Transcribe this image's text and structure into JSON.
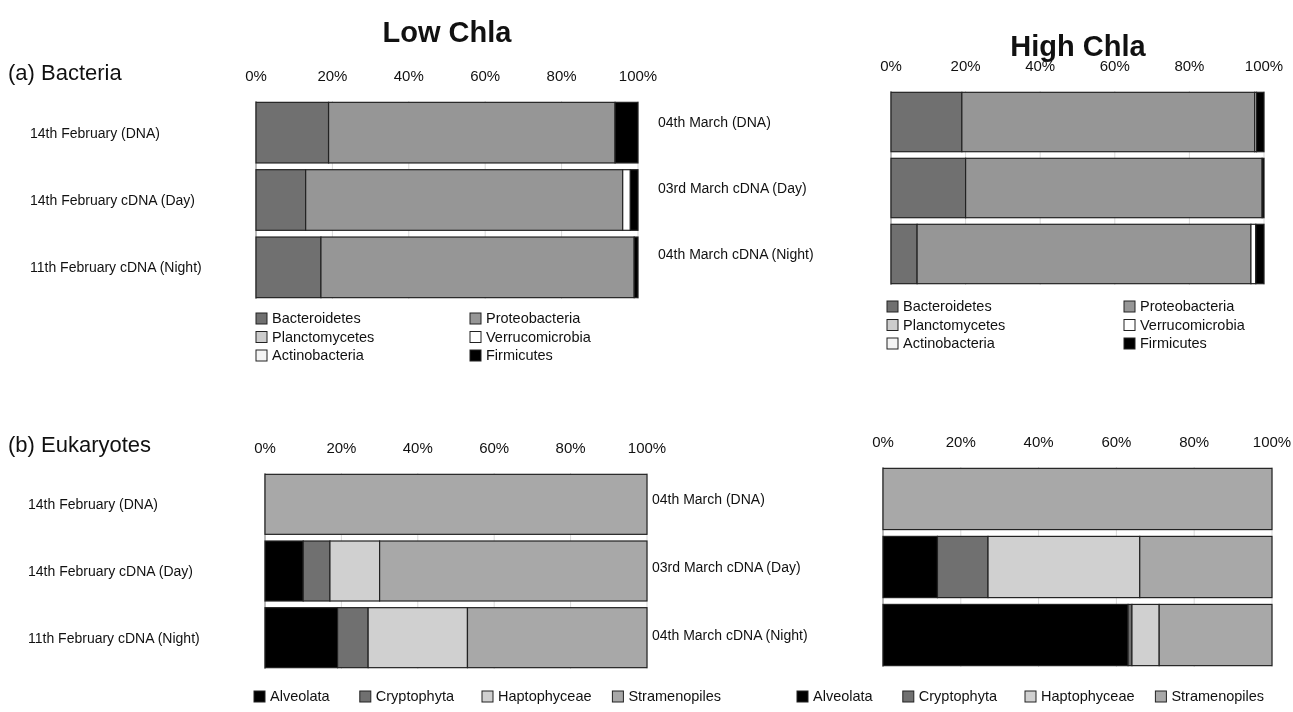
{
  "chart_data": [
    {
      "type": "bar",
      "orientation": "horizontal",
      "stacked": true,
      "title": "Low Chla",
      "annotations": [
        "(a) Bacteria"
      ],
      "categories": [
        "14th February (DNA)",
        "14th February cDNA (Day)",
        "11th February cDNA (Night)"
      ],
      "xlim": [
        0,
        100
      ],
      "xticks": [
        {
          "value": 0,
          "label": "0%"
        },
        {
          "value": 20,
          "label": "20%"
        },
        {
          "value": 40,
          "label": "40%"
        },
        {
          "value": 60,
          "label": "60%"
        },
        {
          "value": 80,
          "label": "80%"
        },
        {
          "value": 100,
          "label": "100%"
        }
      ],
      "grid": "x",
      "legend": "bottom",
      "series": [
        {
          "name": "Bacteroidetes",
          "color": "#707070",
          "values": [
            19,
            13,
            17
          ]
        },
        {
          "name": "Proteobacteria",
          "color": "#969696",
          "values": [
            75,
            83,
            82
          ]
        },
        {
          "name": "Planctomycetes",
          "color": "#cccccc",
          "values": [
            0,
            0,
            0
          ]
        },
        {
          "name": "Verrucomicrobia",
          "color": "#ffffff",
          "values": [
            0,
            2,
            0
          ]
        },
        {
          "name": "Actinobacteria",
          "color": "#f4f4f4",
          "values": [
            0,
            0,
            0
          ]
        },
        {
          "name": "Firmicutes",
          "color": "#000000",
          "values": [
            6,
            2,
            1
          ]
        }
      ]
    },
    {
      "type": "bar",
      "orientation": "horizontal",
      "stacked": true,
      "title": "High Chla",
      "categories": [
        "04th March (DNA)",
        "03rd March cDNA (Day)",
        "04th March cDNA (Night)"
      ],
      "xlim": [
        0,
        100
      ],
      "xticks": [
        {
          "value": 0,
          "label": "0%"
        },
        {
          "value": 20,
          "label": "20%"
        },
        {
          "value": 40,
          "label": "40%"
        },
        {
          "value": 60,
          "label": "60%"
        },
        {
          "value": 80,
          "label": "80%"
        },
        {
          "value": 100,
          "label": "100%"
        }
      ],
      "grid": "x",
      "legend": "bottom",
      "series": [
        {
          "name": "Bacteroidetes",
          "color": "#707070",
          "values": [
            19,
            20,
            7
          ]
        },
        {
          "name": "Proteobacteria",
          "color": "#969696",
          "values": [
            78.5,
            79.5,
            89.5
          ]
        },
        {
          "name": "Planctomycetes",
          "color": "#cccccc",
          "values": [
            0.5,
            0,
            0
          ]
        },
        {
          "name": "Verrucomicrobia",
          "color": "#ffffff",
          "values": [
            0,
            0,
            1.3
          ]
        },
        {
          "name": "Actinobacteria",
          "color": "#f4f4f4",
          "values": [
            0,
            0,
            0
          ]
        },
        {
          "name": "Firmicutes",
          "color": "#000000",
          "values": [
            2,
            0.5,
            2.2
          ]
        }
      ]
    },
    {
      "type": "bar",
      "orientation": "horizontal",
      "stacked": true,
      "annotations": [
        "(b) Eukaryotes"
      ],
      "categories": [
        "14th February (DNA)",
        "14th February cDNA (Day)",
        "11th February cDNA (Night)"
      ],
      "xlim": [
        0,
        100
      ],
      "xticks": [
        {
          "value": 0,
          "label": "0%"
        },
        {
          "value": 20,
          "label": "20%"
        },
        {
          "value": 40,
          "label": "40%"
        },
        {
          "value": 60,
          "label": "60%"
        },
        {
          "value": 80,
          "label": "80%"
        },
        {
          "value": 100,
          "label": "100%"
        }
      ],
      "grid": "x",
      "legend": "bottom",
      "series": [
        {
          "name": "Alveolata",
          "color": "#000000",
          "values": [
            0,
            10,
            19
          ]
        },
        {
          "name": "Cryptophyta",
          "color": "#707070",
          "values": [
            0,
            7,
            8
          ]
        },
        {
          "name": "Haptophyceae",
          "color": "#d0d0d0",
          "values": [
            0,
            13,
            26
          ]
        },
        {
          "name": "Stramenopiles",
          "color": "#a8a8a8",
          "values": [
            100,
            70,
            47
          ]
        }
      ]
    },
    {
      "type": "bar",
      "orientation": "horizontal",
      "stacked": true,
      "categories": [
        "04th March (DNA)",
        "03rd March cDNA (Day)",
        "04th March cDNA (Night)"
      ],
      "xlim": [
        0,
        100
      ],
      "xticks": [
        {
          "value": 0,
          "label": "0%"
        },
        {
          "value": 20,
          "label": "20%"
        },
        {
          "value": 40,
          "label": "40%"
        },
        {
          "value": 60,
          "label": "60%"
        },
        {
          "value": 80,
          "label": "80%"
        },
        {
          "value": 100,
          "label": "100%"
        }
      ],
      "grid": "x",
      "legend": "bottom",
      "series": [
        {
          "name": "Alveolata",
          "color": "#000000",
          "values": [
            0,
            14,
            63
          ]
        },
        {
          "name": "Cryptophyta",
          "color": "#707070",
          "values": [
            0,
            13,
            1
          ]
        },
        {
          "name": "Haptophyceae",
          "color": "#d0d0d0",
          "values": [
            0,
            39,
            7
          ]
        },
        {
          "name": "Stramenopiles",
          "color": "#a8a8a8",
          "values": [
            100,
            34,
            29
          ]
        }
      ]
    }
  ]
}
